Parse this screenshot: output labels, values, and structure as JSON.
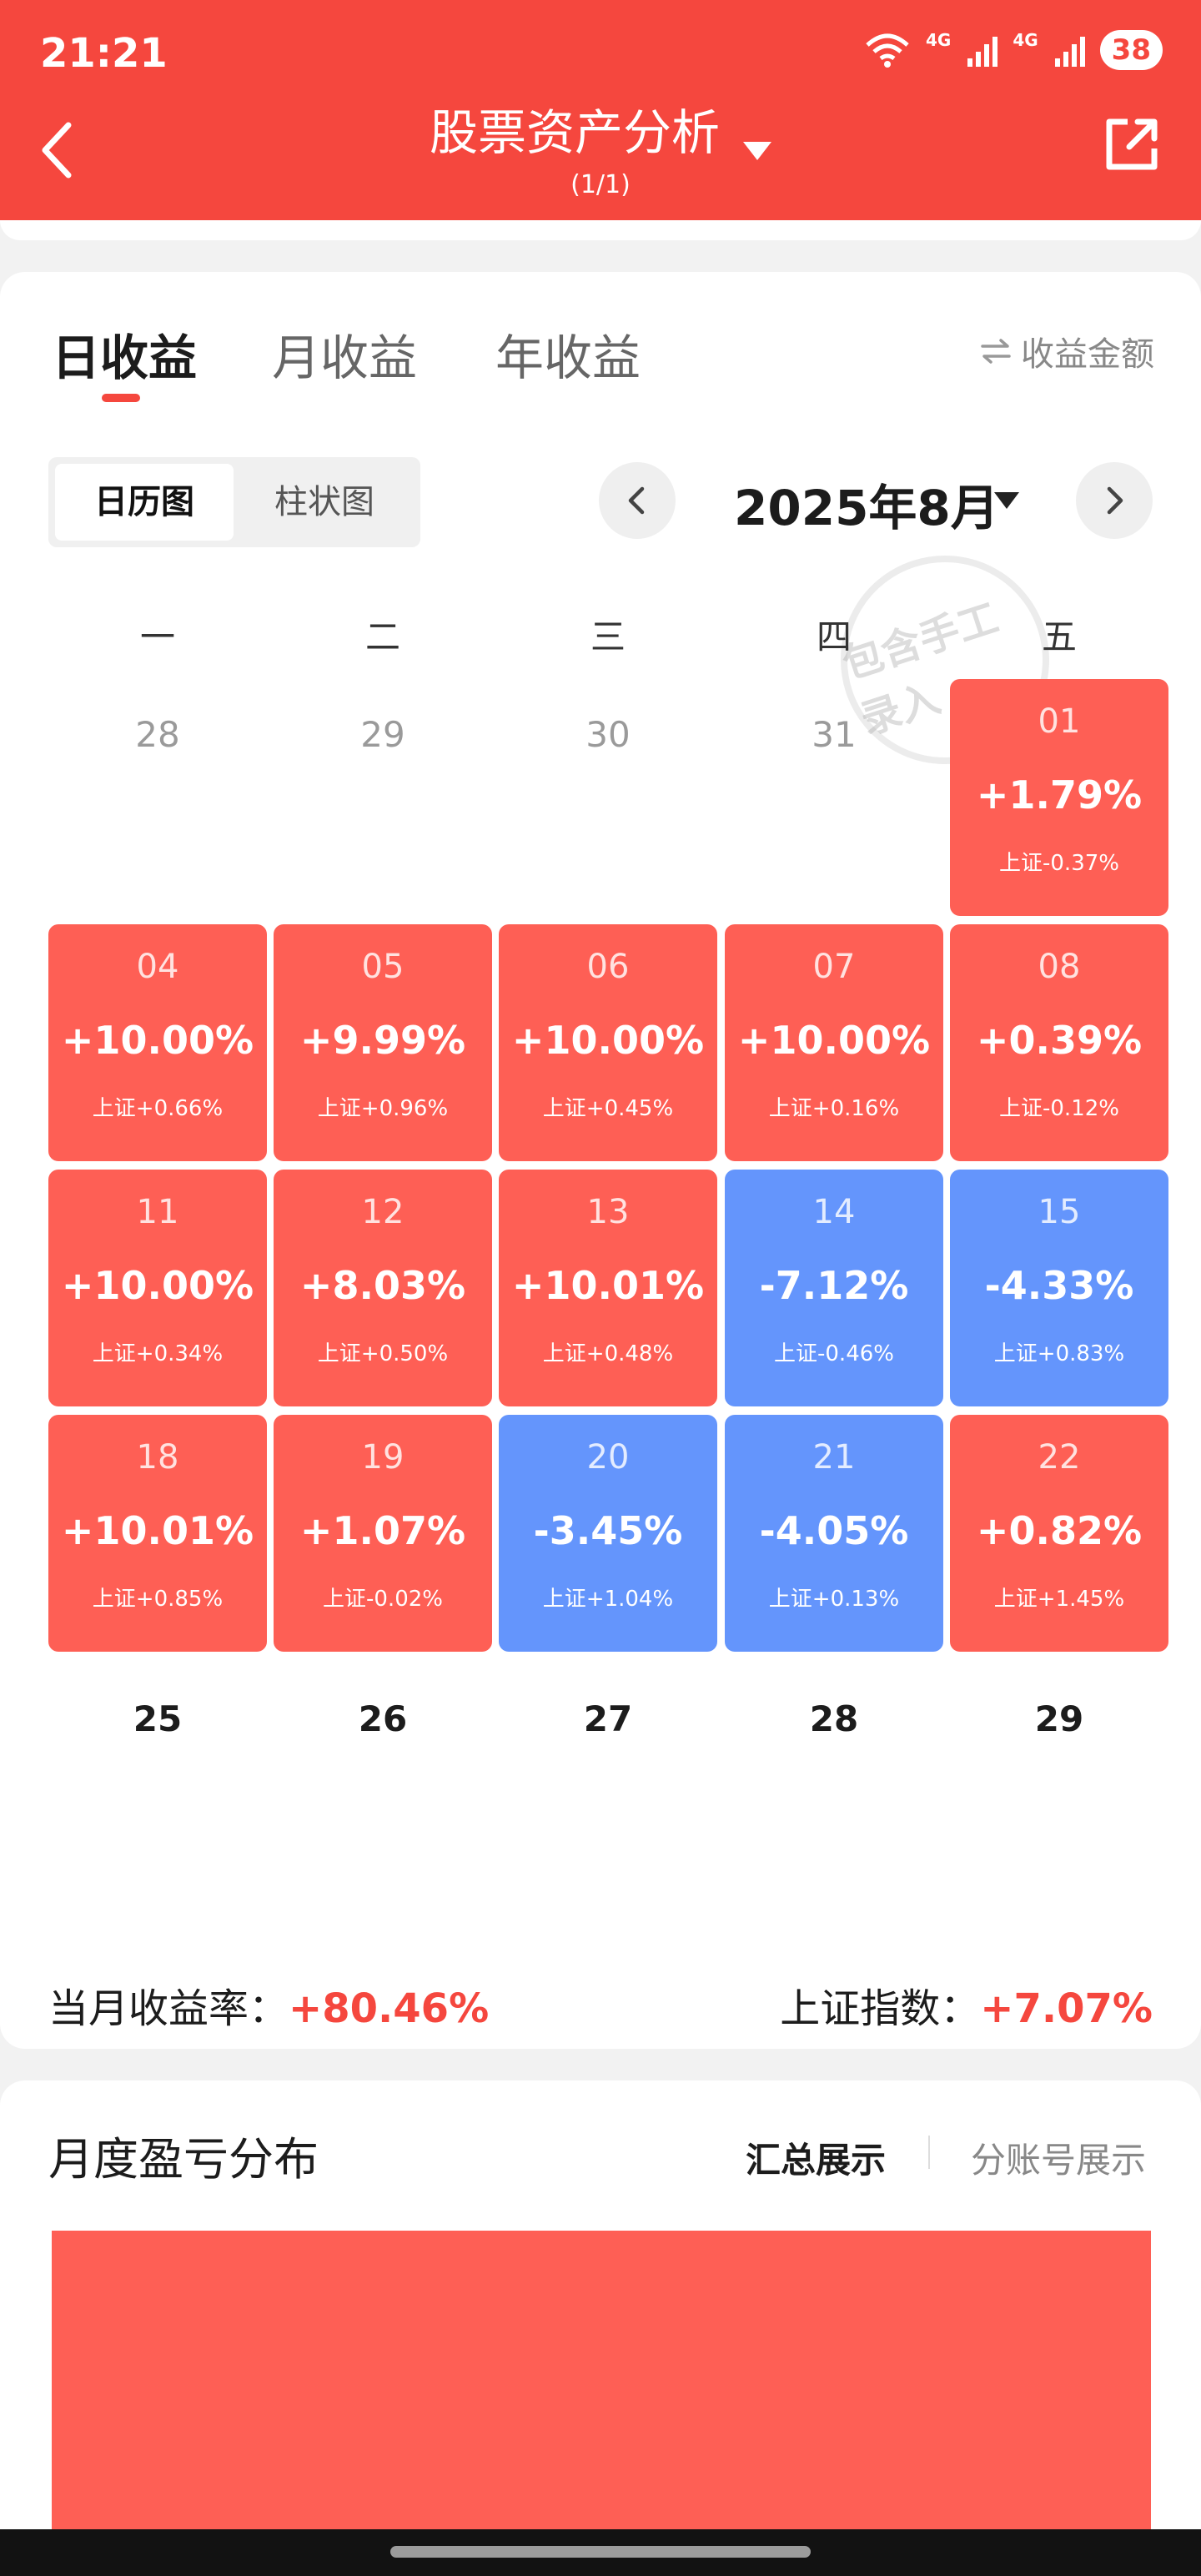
{
  "status_bar": {
    "time": "21:21",
    "net1": "4G",
    "net2": "4G",
    "battery": "38"
  },
  "header": {
    "title": "股票资产分析",
    "subtitle": "(1/1)"
  },
  "tabs": [
    "日收益",
    "月收益",
    "年收益"
  ],
  "amount_toggle": "收益金额",
  "view_toggle": [
    "日历图",
    "柱状图"
  ],
  "month_label": "2025年8月",
  "watermark": "包含手工录入",
  "weekdays": [
    "一",
    "二",
    "三",
    "四",
    "五"
  ],
  "prev_month_days": [
    "28",
    "29",
    "30",
    "31"
  ],
  "days": [
    {
      "day": "01",
      "pct": "+1.79%",
      "idx": "上证-0.37%",
      "dir": "up"
    },
    {
      "day": "04",
      "pct": "+10.00%",
      "idx": "上证+0.66%",
      "dir": "up"
    },
    {
      "day": "05",
      "pct": "+9.99%",
      "idx": "上证+0.96%",
      "dir": "up"
    },
    {
      "day": "06",
      "pct": "+10.00%",
      "idx": "上证+0.45%",
      "dir": "up"
    },
    {
      "day": "07",
      "pct": "+10.00%",
      "idx": "上证+0.16%",
      "dir": "up"
    },
    {
      "day": "08",
      "pct": "+0.39%",
      "idx": "上证-0.12%",
      "dir": "up"
    },
    {
      "day": "11",
      "pct": "+10.00%",
      "idx": "上证+0.34%",
      "dir": "up"
    },
    {
      "day": "12",
      "pct": "+8.03%",
      "idx": "上证+0.50%",
      "dir": "up"
    },
    {
      "day": "13",
      "pct": "+10.01%",
      "idx": "上证+0.48%",
      "dir": "up"
    },
    {
      "day": "14",
      "pct": "-7.12%",
      "idx": "上证-0.46%",
      "dir": "down"
    },
    {
      "day": "15",
      "pct": "-4.33%",
      "idx": "上证+0.83%",
      "dir": "down"
    },
    {
      "day": "18",
      "pct": "+10.01%",
      "idx": "上证+0.85%",
      "dir": "up"
    },
    {
      "day": "19",
      "pct": "+1.07%",
      "idx": "上证-0.02%",
      "dir": "up"
    },
    {
      "day": "20",
      "pct": "-3.45%",
      "idx": "上证+1.04%",
      "dir": "down"
    },
    {
      "day": "21",
      "pct": "-4.05%",
      "idx": "上证+0.13%",
      "dir": "down"
    },
    {
      "day": "22",
      "pct": "+0.82%",
      "idx": "上证+1.45%",
      "dir": "up"
    }
  ],
  "upcoming_days": [
    "25",
    "26",
    "27",
    "28",
    "29"
  ],
  "summary": {
    "month_label": "当月收益率：",
    "month_value": "+80.46%",
    "index_label": "上证指数：",
    "index_value": "+7.07%"
  },
  "distribution": {
    "title": "月度盈亏分布",
    "option_active": "汇总展示",
    "option_inactive": "分账号展示"
  },
  "colors": {
    "header": "#f5473e",
    "gain": "#fe5f55",
    "loss": "#6495fc"
  }
}
